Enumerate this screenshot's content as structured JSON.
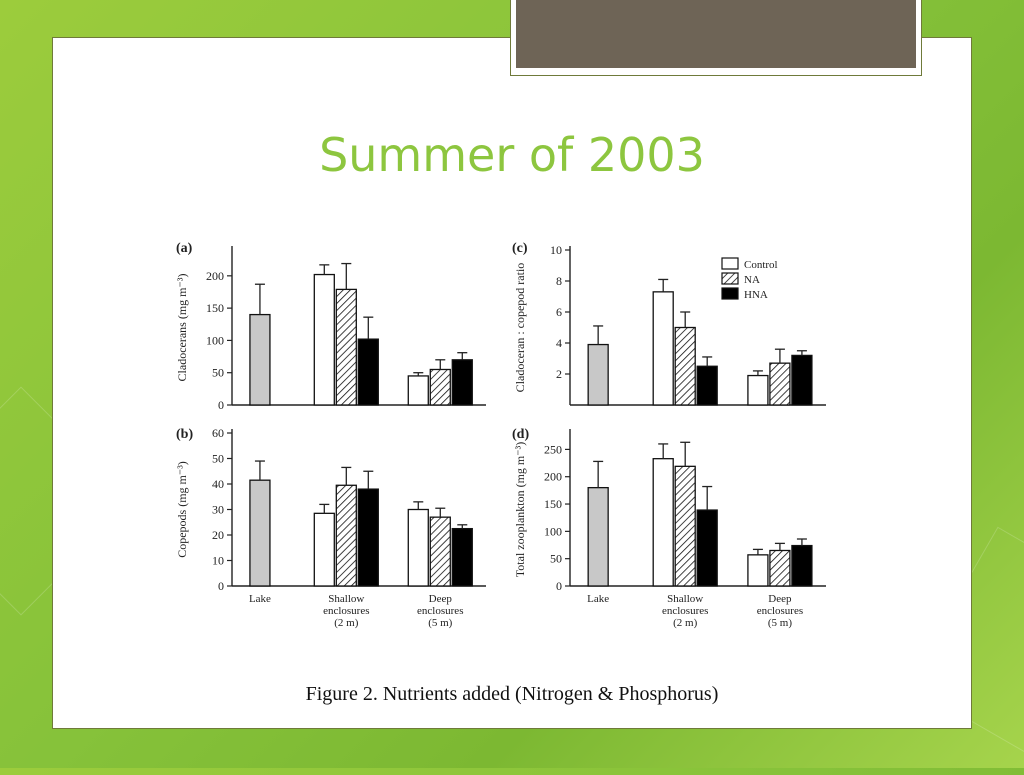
{
  "slide": {
    "title": "Summer of 2003",
    "caption": "Figure 2. Nutrients added (Nitrogen & Phosphorus)"
  },
  "colors": {
    "lake": "#c8c8c8",
    "control": "#ffffff",
    "hna": "#000000",
    "title": "#8dc63f"
  },
  "chart_data": [
    {
      "type": "bar",
      "panel_label": "(a)",
      "ylabel": "Cladocerans (mg m⁻³)",
      "ylim": [
        0,
        240
      ],
      "yticks": [
        0,
        50,
        100,
        150,
        200
      ],
      "groups": [
        "Lake",
        "Shallow enclosures (2 m)",
        "Deep enclosures (5 m)"
      ],
      "show_xlabels": false,
      "bars": [
        {
          "group": 0,
          "treatment": "Lake",
          "value": 140,
          "error": 47
        },
        {
          "group": 1,
          "treatment": "Control",
          "value": 202,
          "error": 15
        },
        {
          "group": 1,
          "treatment": "NA",
          "value": 179,
          "error": 40
        },
        {
          "group": 1,
          "treatment": "HNA",
          "value": 102,
          "error": 34
        },
        {
          "group": 2,
          "treatment": "Control",
          "value": 45,
          "error": 5
        },
        {
          "group": 2,
          "treatment": "NA",
          "value": 55,
          "error": 15
        },
        {
          "group": 2,
          "treatment": "HNA",
          "value": 70,
          "error": 11
        }
      ]
    },
    {
      "type": "bar",
      "panel_label": "(c)",
      "ylabel": "Cladoceran : copepod ratio",
      "ylim": [
        0,
        10
      ],
      "yticks": [
        2,
        4,
        6,
        8,
        10
      ],
      "groups": [
        "Lake",
        "Shallow enclosures (2 m)",
        "Deep enclosures (5 m)"
      ],
      "show_xlabels": false,
      "legend": [
        "Control",
        "NA",
        "HNA"
      ],
      "bars": [
        {
          "group": 0,
          "treatment": "Lake",
          "value": 3.9,
          "error": 1.2
        },
        {
          "group": 1,
          "treatment": "Control",
          "value": 7.3,
          "error": 0.8
        },
        {
          "group": 1,
          "treatment": "NA",
          "value": 5.0,
          "error": 1.0
        },
        {
          "group": 1,
          "treatment": "HNA",
          "value": 2.5,
          "error": 0.6
        },
        {
          "group": 2,
          "treatment": "Control",
          "value": 1.9,
          "error": 0.3
        },
        {
          "group": 2,
          "treatment": "NA",
          "value": 2.7,
          "error": 0.9
        },
        {
          "group": 2,
          "treatment": "HNA",
          "value": 3.2,
          "error": 0.3
        }
      ]
    },
    {
      "type": "bar",
      "panel_label": "(b)",
      "ylabel": "Copepods (mg m⁻³)",
      "ylim": [
        0,
        60
      ],
      "yticks": [
        0,
        10,
        20,
        30,
        40,
        50,
        60
      ],
      "groups": [
        "Lake",
        "Shallow enclosures (2 m)",
        "Deep enclosures (5 m)"
      ],
      "show_xlabels": true,
      "bars": [
        {
          "group": 0,
          "treatment": "Lake",
          "value": 41.5,
          "error": 7.5
        },
        {
          "group": 1,
          "treatment": "Control",
          "value": 28.5,
          "error": 3.5
        },
        {
          "group": 1,
          "treatment": "NA",
          "value": 39.5,
          "error": 7
        },
        {
          "group": 1,
          "treatment": "HNA",
          "value": 38,
          "error": 7
        },
        {
          "group": 2,
          "treatment": "Control",
          "value": 30,
          "error": 3
        },
        {
          "group": 2,
          "treatment": "NA",
          "value": 27,
          "error": 3.5
        },
        {
          "group": 2,
          "treatment": "HNA",
          "value": 22.5,
          "error": 1.5
        }
      ]
    },
    {
      "type": "bar",
      "panel_label": "(d)",
      "ylabel": "Total zooplankton (mg m⁻³)",
      "ylim": [
        0,
        280
      ],
      "yticks": [
        0,
        50,
        100,
        150,
        200,
        250
      ],
      "groups": [
        "Lake",
        "Shallow enclosures (2 m)",
        "Deep enclosures (5 m)"
      ],
      "show_xlabels": true,
      "bars": [
        {
          "group": 0,
          "treatment": "Lake",
          "value": 180,
          "error": 48
        },
        {
          "group": 1,
          "treatment": "Control",
          "value": 233,
          "error": 27
        },
        {
          "group": 1,
          "treatment": "NA",
          "value": 219,
          "error": 44
        },
        {
          "group": 1,
          "treatment": "HNA",
          "value": 139,
          "error": 43
        },
        {
          "group": 2,
          "treatment": "Control",
          "value": 57,
          "error": 10
        },
        {
          "group": 2,
          "treatment": "NA",
          "value": 65,
          "error": 13
        },
        {
          "group": 2,
          "treatment": "HNA",
          "value": 74,
          "error": 12
        }
      ]
    }
  ]
}
